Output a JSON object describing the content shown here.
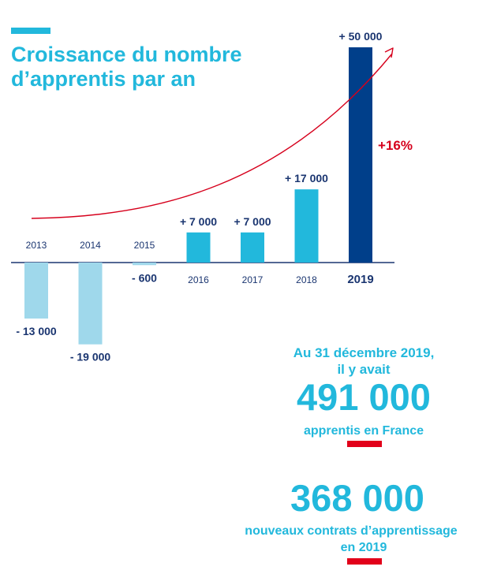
{
  "chart_data": {
    "type": "bar",
    "title": "Croissance du nombre d’apprentis par an",
    "categories": [
      "2013",
      "2014",
      "2015",
      "2016",
      "2017",
      "2018",
      "2019"
    ],
    "values": [
      -13000,
      -19000,
      -600,
      7000,
      7000,
      17000,
      50000
    ],
    "value_labels": [
      "- 13 000",
      "- 19 000",
      "- 600",
      "+ 7 000",
      "+ 7 000",
      "+ 17 000",
      "+ 50 000"
    ],
    "highlight_category": "2019",
    "trend_label": "+16%",
    "colors": {
      "negative": "#9fd8eb",
      "positive": "#22b8dc",
      "highlight": "#003f8a",
      "trend": "#d6001c",
      "axis": "#1a3570"
    }
  },
  "stats": {
    "line1": "Au 31 décembre 2019,",
    "line2": "il y avait",
    "apprentis_value": "491 000",
    "apprentis_caption": "apprentis en France",
    "contrats_value": "368 000",
    "contrats_caption_1": "nouveaux contrats d’apprentissage",
    "contrats_caption_2": "en 2019"
  }
}
